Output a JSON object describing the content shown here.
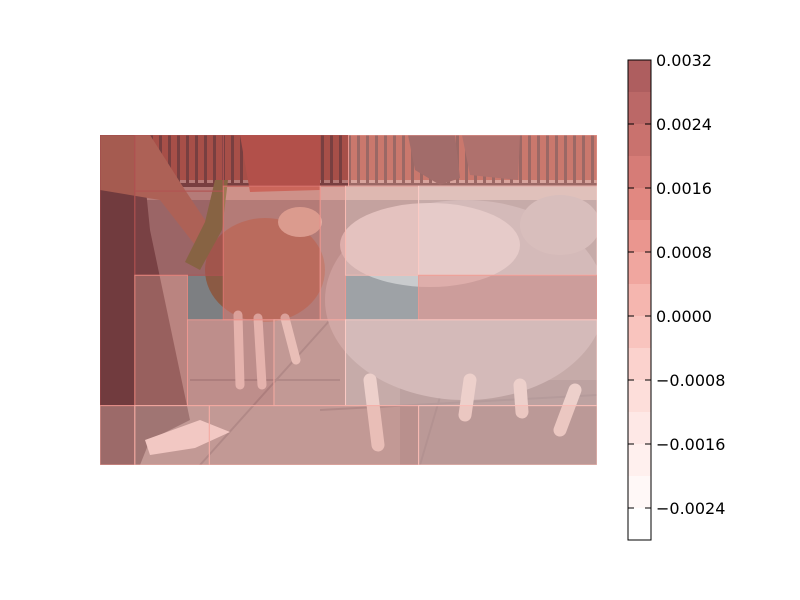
{
  "chart_data": {
    "type": "heatmap",
    "title": "",
    "xlabel": "",
    "ylabel": "",
    "background_image": {
      "subject": "photo",
      "palette": {
        "pavement": "#7d7f82",
        "pavement_dark": "#555a60",
        "wall": "#9a4a3a",
        "fence": "#2a2426",
        "wool_gray": "#9ea2a6",
        "wool_light": "#c9cbcd",
        "wool_brown": "#8b5a44",
        "leg_white": "#d8d6d2",
        "trousers": "#2b2a30",
        "arm": "#a8755c",
        "bottle": "#4c7a2e",
        "shoe": "#eeeeee"
      }
    },
    "colorbar": {
      "orientation": "vertical",
      "vmin": -0.0028,
      "vmax": 0.0032,
      "ticks": [
        0.0032,
        0.0024,
        0.0016,
        0.0008,
        0.0,
        -0.0008,
        -0.0016,
        -0.0024
      ],
      "tick_labels": [
        "0.0032",
        "0.0024",
        "0.0016",
        "0.0008",
        "0.0000",
        "−0.0008",
        "−0.0016",
        "−0.0024"
      ],
      "levels": [
        -0.0028,
        -0.0024,
        -0.002,
        -0.0016,
        -0.0012,
        -0.0008,
        -0.0004,
        0.0,
        0.0004,
        0.0008,
        0.0012,
        0.0016,
        0.002,
        0.0024,
        0.0028,
        0.0032
      ],
      "colors": [
        "#ffffff",
        "#fff7f6",
        "#ffeeec",
        "#fee5e2",
        "#fdd9d5",
        "#fbccc6",
        "#f8bcb5",
        "#f4aca4",
        "#ee9a92",
        "#e7887f",
        "#dd7870",
        "#d06a64",
        "#c15e5a",
        "#b25352",
        "#a34849"
      ]
    },
    "overlay": {
      "opacity": 0.58,
      "cells": [
        {
          "x0": 0.0,
          "x1": 0.07,
          "y0": 0.0,
          "y1": 0.82,
          "value": 0.0032
        },
        {
          "x0": 0.07,
          "x1": 0.248,
          "y0": 0.0,
          "y1": 0.17,
          "value": 0.0028
        },
        {
          "x0": 0.248,
          "x1": 0.5,
          "y0": 0.0,
          "y1": 0.155,
          "value": 0.0026
        },
        {
          "x0": 0.5,
          "x1": 1.0,
          "y0": 0.0,
          "y1": 0.155,
          "value": 0.0006
        },
        {
          "x0": 0.07,
          "x1": 0.248,
          "y0": 0.17,
          "y1": 0.425,
          "value": 0.0028
        },
        {
          "x0": 0.248,
          "x1": 0.443,
          "y0": 0.155,
          "y1": 0.56,
          "value": 0.0014
        },
        {
          "x0": 0.443,
          "x1": 0.494,
          "y0": 0.155,
          "y1": 0.56,
          "value": 0.0008
        },
        {
          "x0": 0.07,
          "x1": 0.176,
          "y0": 0.425,
          "y1": 0.82,
          "value": 0.0012
        },
        {
          "x0": 0.176,
          "x1": 0.35,
          "y0": 0.56,
          "y1": 0.82,
          "value": 0.0008
        },
        {
          "x0": 0.35,
          "x1": 0.494,
          "y0": 0.56,
          "y1": 0.82,
          "value": 0.0004
        },
        {
          "x0": 0.494,
          "x1": 0.641,
          "y0": 0.155,
          "y1": 0.425,
          "value": -0.0002
        },
        {
          "x0": 0.641,
          "x1": 1.0,
          "y0": 0.155,
          "y1": 0.425,
          "value": -0.0006
        },
        {
          "x0": 0.641,
          "x1": 1.0,
          "y0": 0.425,
          "y1": 0.56,
          "value": 0.0008
        },
        {
          "x0": 0.494,
          "x1": 1.0,
          "y0": 0.56,
          "y1": 0.82,
          "value": -0.0004
        },
        {
          "x0": 0.0,
          "x1": 0.07,
          "y0": 0.82,
          "y1": 1.0,
          "value": 0.0006
        },
        {
          "x0": 0.07,
          "x1": 0.22,
          "y0": 0.82,
          "y1": 1.0,
          "value": 0.0004
        },
        {
          "x0": 0.22,
          "x1": 0.641,
          "y0": 0.82,
          "y1": 1.0,
          "value": 0.0002
        },
        {
          "x0": 0.641,
          "x1": 1.0,
          "y0": 0.82,
          "y1": 1.0,
          "value": -0.0002
        }
      ]
    }
  }
}
